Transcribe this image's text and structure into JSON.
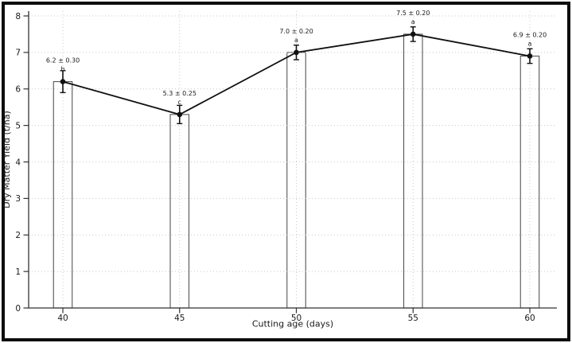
{
  "figure": {
    "background": "#ffffff",
    "border_color": "#0d0d0d"
  },
  "chart_data": {
    "type": "bar",
    "overlay": "line-with-error-bars-and-markers",
    "title": "",
    "xlabel": "Cutting age (days)",
    "ylabel": "Dry Matter Yield (t/ha)",
    "categories": [
      40,
      45,
      50,
      55,
      60
    ],
    "series": [
      {
        "name": "Dry Matter Yield",
        "values": [
          6.2,
          5.3,
          7.0,
          7.5,
          6.9
        ],
        "errors": [
          0.3,
          0.25,
          0.2,
          0.2,
          0.2
        ]
      }
    ],
    "annotations": [
      {
        "x": 40,
        "y": 6.2,
        "text": "6.2 ± 0.30",
        "letter": "b"
      },
      {
        "x": 45,
        "y": 5.3,
        "text": "5.3 ± 0.25",
        "letter": "c"
      },
      {
        "x": 50,
        "y": 7.0,
        "text": "7.0 ± 0.20",
        "letter": "a"
      },
      {
        "x": 55,
        "y": 7.5,
        "text": "7.5 ± 0.20",
        "letter": "a"
      },
      {
        "x": 60,
        "y": 6.9,
        "text": "6.9 ± 0.20",
        "letter": "a"
      }
    ],
    "xticks": [
      40,
      45,
      50,
      55,
      60
    ],
    "xtick_labels": [
      "40",
      "45",
      "50",
      "55",
      "60"
    ],
    "yticks": [
      0,
      1,
      2,
      3,
      4,
      5,
      6,
      7,
      8
    ],
    "ytick_labels": [
      "0",
      "1",
      "2",
      "3",
      "4",
      "5",
      "6",
      "7",
      "8"
    ],
    "xlim": [
      38.53,
      61.15
    ],
    "ylim": [
      0,
      8
    ],
    "grid": true,
    "grid_style": "dotted",
    "legend": null,
    "bar_width_days": 0.8,
    "colors": {
      "bar_fill": "#ffffff",
      "bar_edge": "#555555",
      "line": "#111111",
      "marker": "#111111",
      "error_bar": "#111111",
      "grid": "#c9c9c9",
      "spine": "#333333",
      "text": "#1a1a1a"
    }
  }
}
